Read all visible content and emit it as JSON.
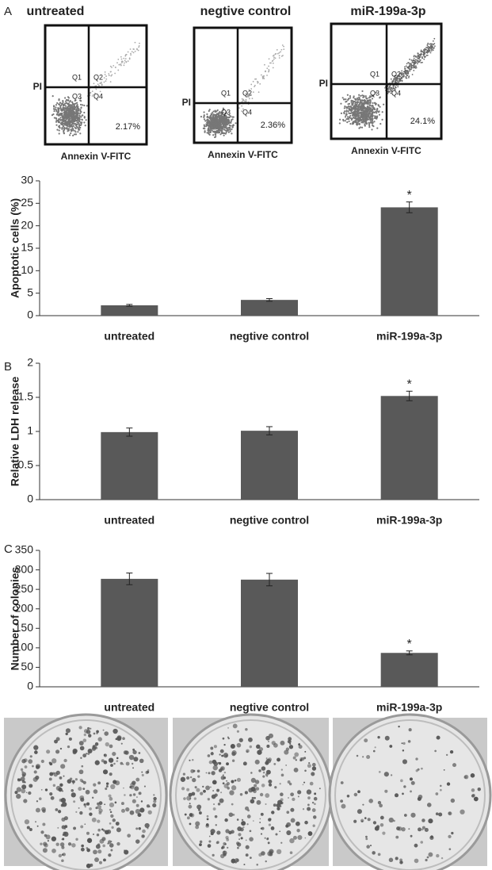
{
  "panel_labels": [
    "A",
    "B",
    "C"
  ],
  "flow_panels": [
    {
      "title": "untreated",
      "percent": "2.17%",
      "quadrants": [
        "Q1",
        "Q2",
        "Q3",
        "Q4"
      ],
      "ylabel": "PI",
      "xlabel": "Annexin V-FITC"
    },
    {
      "title": "negtive control",
      "percent": "2.36%",
      "quadrants": [
        "Q1",
        "Q2",
        "Q3",
        "Q4"
      ],
      "ylabel": "PI",
      "xlabel": "Annexin V-FITC"
    },
    {
      "title": "miR-199a-3p",
      "percent": "24.1%",
      "quadrants": [
        "Q1",
        "Q2",
        "Q3",
        "Q4"
      ],
      "ylabel": "PI",
      "xlabel": "Annexin V-FITC"
    }
  ],
  "chart_data": [
    {
      "type": "bar",
      "ylabel": "Apoptotic cells (%)",
      "categories": [
        "untreated",
        "negtive control",
        "miR-199a-3p"
      ],
      "values": [
        2.3,
        3.5,
        24.1
      ],
      "errors": [
        0.2,
        0.3,
        1.2
      ],
      "color": "#595959",
      "ylim": [
        0,
        30
      ],
      "yticks": [
        0,
        5,
        10,
        15,
        20,
        25,
        30
      ],
      "annotations": [
        {
          "text": "*",
          "category": "miR-199a-3p"
        }
      ]
    },
    {
      "type": "bar",
      "ylabel": "Relative LDH release",
      "categories": [
        "untreated",
        "negtive control",
        "miR-199a-3p"
      ],
      "values": [
        0.99,
        1.01,
        1.52
      ],
      "errors": [
        0.06,
        0.06,
        0.07
      ],
      "color": "#595959",
      "ylim": [
        0,
        2
      ],
      "yticks": [
        0,
        0.5,
        1,
        1.5,
        2
      ],
      "annotations": [
        {
          "text": "*",
          "category": "miR-199a-3p"
        }
      ]
    },
    {
      "type": "bar",
      "ylabel": "Number of colonies",
      "categories": [
        "untreated",
        "negtive control",
        "miR-199a-3p"
      ],
      "values": [
        277,
        275,
        87
      ],
      "errors": [
        15,
        16,
        5
      ],
      "color": "#595959",
      "ylim": [
        0,
        350
      ],
      "yticks": [
        0,
        50,
        100,
        150,
        200,
        250,
        300,
        350
      ],
      "annotations": [
        {
          "text": "*",
          "category": "miR-199a-3p"
        }
      ]
    }
  ]
}
